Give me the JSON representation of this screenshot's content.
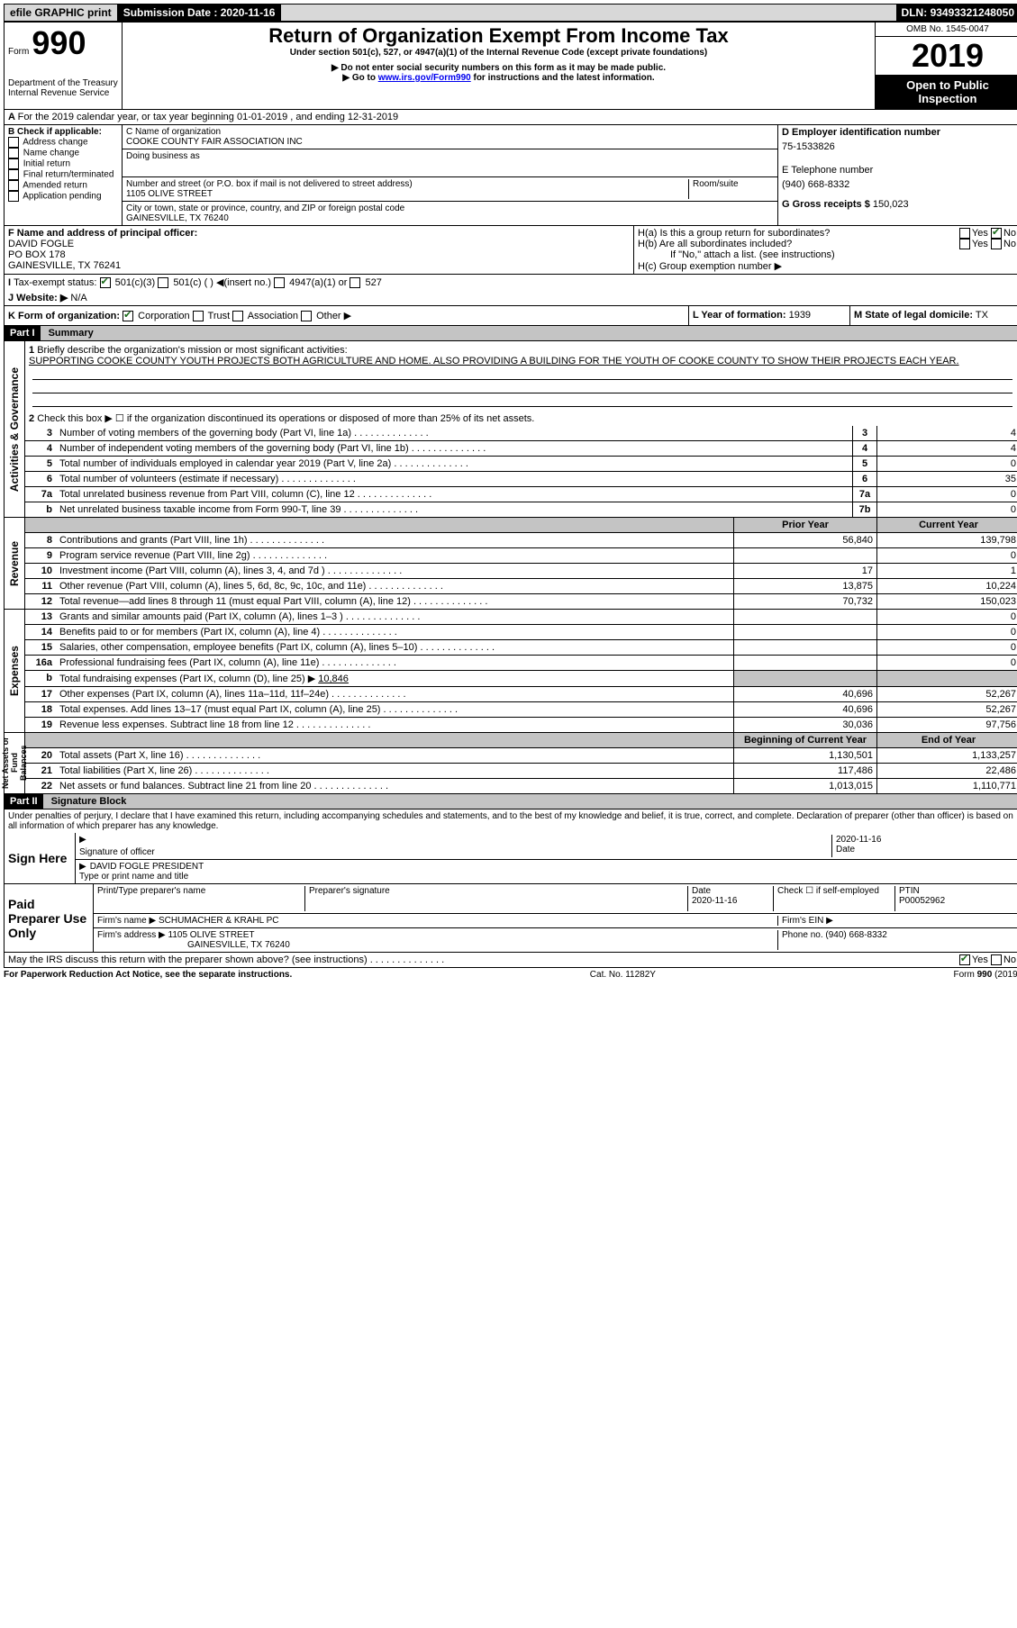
{
  "topbar": {
    "efile": "efile GRAPHIC print",
    "sub_label": "Submission Date :",
    "sub_date": "2020-11-16",
    "dln_label": "DLN:",
    "dln": "93493321248050"
  },
  "header": {
    "form_word": "Form",
    "form_no": "990",
    "dept": "Department of the Treasury\nInternal Revenue Service",
    "title": "Return of Organization Exempt From Income Tax",
    "subtitle": "Under section 501(c), 527, or 4947(a)(1) of the Internal Revenue Code (except private foundations)",
    "note1": "▶ Do not enter social security numbers on this form as it may be made public.",
    "note2_pre": "▶ Go to ",
    "note2_link": "www.irs.gov/Form990",
    "note2_post": " for instructions and the latest information.",
    "omb": "OMB No. 1545-0047",
    "year": "2019",
    "inspect": "Open to Public Inspection"
  },
  "periodA": "For the 2019 calendar year, or tax year beginning 01-01-2019    , and ending 12-31-2019",
  "boxB": {
    "label": "B Check if applicable:",
    "items": [
      "Address change",
      "Name change",
      "Initial return",
      "Final return/terminated",
      "Amended return",
      "Application pending"
    ]
  },
  "boxC": {
    "name_label": "C Name of organization",
    "name": "COOKE COUNTY FAIR ASSOCIATION INC",
    "dba_label": "Doing business as",
    "addr_label": "Number and street (or P.O. box if mail is not delivered to street address)",
    "room_label": "Room/suite",
    "addr": "1105 OLIVE STREET",
    "city_label": "City or town, state or province, country, and ZIP or foreign postal code",
    "city": "GAINESVILLE, TX  76240"
  },
  "boxD": {
    "label": "D Employer identification number",
    "val": "75-1533826"
  },
  "boxE": {
    "label": "E Telephone number",
    "val": "(940) 668-8332"
  },
  "boxG": {
    "label": "G Gross receipts $",
    "val": "150,023"
  },
  "boxF": {
    "label": "F  Name and address of principal officer:",
    "name": "DAVID FOGLE",
    "addr1": "PO BOX 178",
    "addr2": "GAINESVILLE, TX  76241"
  },
  "boxH": {
    "a": "H(a)  Is this a group return for subordinates?",
    "b": "H(b)  Are all subordinates included?",
    "b_note": "If \"No,\" attach a list. (see instructions)",
    "c": "H(c)  Group exemption number ▶",
    "yes": "Yes",
    "no": "No"
  },
  "boxI": {
    "label": "Tax-exempt status:",
    "opt1": "501(c)(3)",
    "opt2": "501(c) (  ) ◀(insert no.)",
    "opt3": "4947(a)(1) or",
    "opt4": "527"
  },
  "boxJ": {
    "label": "J   Website: ▶",
    "val": "N/A"
  },
  "boxK": {
    "label": "K Form of organization:",
    "opts": [
      "Corporation",
      "Trust",
      "Association",
      "Other ▶"
    ]
  },
  "boxL": {
    "label": "L Year of formation:",
    "val": "1939"
  },
  "boxM": {
    "label": "M State of legal domicile:",
    "val": "TX"
  },
  "part1": {
    "hdr": "Part I",
    "title": "Summary",
    "side_ag": "Activities & Governance",
    "side_rev": "Revenue",
    "side_exp": "Expenses",
    "side_net": "Net Assets or Fund Balances",
    "l1_label": "Briefly describe the organization's mission or most significant activities:",
    "l1_text": "SUPPORTING COOKE COUNTY YOUTH PROJECTS BOTH AGRICULTURE AND HOME. ALSO PROVIDING A BUILDING FOR THE YOUTH OF COOKE COUNTY TO SHOW THEIR PROJECTS EACH YEAR.",
    "l2": "Check this box ▶ ☐  if the organization discontinued its operations or disposed of more than 25% of its net assets.",
    "prior_hdr": "Prior Year",
    "curr_hdr": "Current Year",
    "begin_hdr": "Beginning of Current Year",
    "end_hdr": "End of Year",
    "lines_ag": [
      {
        "no": "3",
        "label": "Number of voting members of the governing body (Part VI, line 1a)",
        "box": "3",
        "val": "4"
      },
      {
        "no": "4",
        "label": "Number of independent voting members of the governing body (Part VI, line 1b)",
        "box": "4",
        "val": "4"
      },
      {
        "no": "5",
        "label": "Total number of individuals employed in calendar year 2019 (Part V, line 2a)",
        "box": "5",
        "val": "0"
      },
      {
        "no": "6",
        "label": "Total number of volunteers (estimate if necessary)",
        "box": "6",
        "val": "35"
      },
      {
        "no": "7a",
        "label": "Total unrelated business revenue from Part VIII, column (C), line 12",
        "box": "7a",
        "val": "0"
      },
      {
        "no": "b",
        "label": "Net unrelated business taxable income from Form 990-T, line 39",
        "box": "7b",
        "val": "0"
      }
    ],
    "lines_rev": [
      {
        "no": "8",
        "label": "Contributions and grants (Part VIII, line 1h)",
        "prior": "56,840",
        "curr": "139,798"
      },
      {
        "no": "9",
        "label": "Program service revenue (Part VIII, line 2g)",
        "prior": "",
        "curr": "0"
      },
      {
        "no": "10",
        "label": "Investment income (Part VIII, column (A), lines 3, 4, and 7d )",
        "prior": "17",
        "curr": "1"
      },
      {
        "no": "11",
        "label": "Other revenue (Part VIII, column (A), lines 5, 6d, 8c, 9c, 10c, and 11e)",
        "prior": "13,875",
        "curr": "10,224"
      },
      {
        "no": "12",
        "label": "Total revenue—add lines 8 through 11 (must equal Part VIII, column (A), line 12)",
        "prior": "70,732",
        "curr": "150,023"
      }
    ],
    "lines_exp": [
      {
        "no": "13",
        "label": "Grants and similar amounts paid (Part IX, column (A), lines 1–3 )",
        "prior": "",
        "curr": "0"
      },
      {
        "no": "14",
        "label": "Benefits paid to or for members (Part IX, column (A), line 4)",
        "prior": "",
        "curr": "0"
      },
      {
        "no": "15",
        "label": "Salaries, other compensation, employee benefits (Part IX, column (A), lines 5–10)",
        "prior": "",
        "curr": "0"
      },
      {
        "no": "16a",
        "label": "Professional fundraising fees (Part IX, column (A), line 11e)",
        "prior": "",
        "curr": "0"
      }
    ],
    "l16b_pre": "Total fundraising expenses (Part IX, column (D), line 25) ▶",
    "l16b_val": "10,846",
    "lines_exp2": [
      {
        "no": "17",
        "label": "Other expenses (Part IX, column (A), lines 11a–11d, 11f–24e)",
        "prior": "40,696",
        "curr": "52,267"
      },
      {
        "no": "18",
        "label": "Total expenses. Add lines 13–17 (must equal Part IX, column (A), line 25)",
        "prior": "40,696",
        "curr": "52,267"
      },
      {
        "no": "19",
        "label": "Revenue less expenses. Subtract line 18 from line 12",
        "prior": "30,036",
        "curr": "97,756"
      }
    ],
    "lines_net": [
      {
        "no": "20",
        "label": "Total assets (Part X, line 16)",
        "prior": "1,130,501",
        "curr": "1,133,257"
      },
      {
        "no": "21",
        "label": "Total liabilities (Part X, line 26)",
        "prior": "117,486",
        "curr": "22,486"
      },
      {
        "no": "22",
        "label": "Net assets or fund balances. Subtract line 21 from line 20",
        "prior": "1,013,015",
        "curr": "1,110,771"
      }
    ]
  },
  "part2": {
    "hdr": "Part II",
    "title": "Signature Block",
    "decl": "Under penalties of perjury, I declare that I have examined this return, including accompanying schedules and statements, and to the best of my knowledge and belief, it is true, correct, and complete. Declaration of preparer (other than officer) is based on all information of which preparer has any knowledge.",
    "sign_here": "Sign Here",
    "sig_officer": "Signature of officer",
    "sig_date": "2020-11-16",
    "date_label": "Date",
    "name_title": "DAVID FOGLE  PRESIDENT",
    "name_title_label": "Type or print name and title",
    "paid": "Paid Preparer Use Only",
    "prep_name_label": "Print/Type preparer's name",
    "prep_sig_label": "Preparer's signature",
    "prep_date_val": "2020-11-16",
    "check_self": "Check ☐  if self-employed",
    "ptin_label": "PTIN",
    "ptin": "P00052962",
    "firm_name_label": "Firm's name    ▶",
    "firm_name": "SCHUMACHER & KRAHL PC",
    "firm_ein_label": "Firm's EIN ▶",
    "firm_addr_label": "Firm's address ▶",
    "firm_addr1": "1105 OLIVE STREET",
    "firm_addr2": "GAINESVILLE, TX  76240",
    "phone_label": "Phone no.",
    "phone": "(940) 668-8332",
    "discuss": "May the IRS discuss this return with the preparer shown above? (see instructions)"
  },
  "footer": {
    "l": "For Paperwork Reduction Act Notice, see the separate instructions.",
    "c": "Cat. No. 11282Y",
    "r": "Form 990 (2019)"
  }
}
